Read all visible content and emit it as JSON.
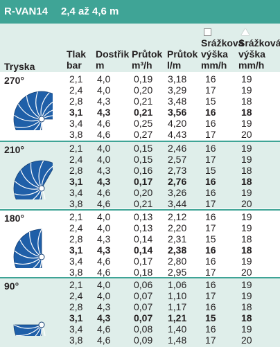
{
  "title_bar": {
    "model": "R-VAN14",
    "range": "2,4 až 4,6 m"
  },
  "colors": {
    "accent": "#3fa496",
    "band": "#dfeeea"
  },
  "columns": {
    "tryska": "Tryska",
    "tlak": [
      "Tlak",
      "bar"
    ],
    "dostrik": [
      "Dostřik",
      "m"
    ],
    "prutok_m3": [
      "Průtok",
      "m³/h"
    ],
    "prutok_l": [
      "Průtok",
      "l/m"
    ],
    "srazkova_sq": [
      "Srážková",
      "výška",
      "mm/h"
    ],
    "srazkova_tri": [
      "Srážková",
      "výška",
      "mm/h"
    ]
  },
  "groups": [
    {
      "arc": "270°",
      "icon": "nozzle-270-icon",
      "bold_row": 3,
      "rows": [
        [
          "2,1",
          "4,0",
          "0,19",
          "3,18",
          "16",
          "19"
        ],
        [
          "2,4",
          "4,0",
          "0,20",
          "3,29",
          "17",
          "19"
        ],
        [
          "2,8",
          "4,3",
          "0,21",
          "3,48",
          "15",
          "18"
        ],
        [
          "3,1",
          "4,3",
          "0,21",
          "3,56",
          "16",
          "18"
        ],
        [
          "3,4",
          "4,6",
          "0,25",
          "4,20",
          "16",
          "19"
        ],
        [
          "3,8",
          "4,6",
          "0,27",
          "4,43",
          "17",
          "20"
        ]
      ]
    },
    {
      "arc": "210°",
      "icon": "nozzle-210-icon",
      "bold_row": 3,
      "rows": [
        [
          "2,1",
          "4,0",
          "0,15",
          "2,46",
          "16",
          "19"
        ],
        [
          "2,4",
          "4,0",
          "0,15",
          "2,57",
          "17",
          "19"
        ],
        [
          "2,8",
          "4,3",
          "0,16",
          "2,73",
          "15",
          "18"
        ],
        [
          "3,1",
          "4,3",
          "0,17",
          "2,76",
          "16",
          "18"
        ],
        [
          "3,4",
          "4,6",
          "0,20",
          "3,26",
          "16",
          "19"
        ],
        [
          "3,8",
          "4,6",
          "0,21",
          "3,44",
          "17",
          "20"
        ]
      ]
    },
    {
      "arc": "180°",
      "icon": "nozzle-180-icon",
      "bold_row": 3,
      "rows": [
        [
          "2,1",
          "4,0",
          "0,13",
          "2,12",
          "16",
          "19"
        ],
        [
          "2,4",
          "4,0",
          "0,13",
          "2,20",
          "17",
          "19"
        ],
        [
          "2,8",
          "4,3",
          "0,14",
          "2,31",
          "15",
          "18"
        ],
        [
          "3,1",
          "4,3",
          "0,14",
          "2,38",
          "16",
          "18"
        ],
        [
          "3,4",
          "4,6",
          "0,17",
          "2,80",
          "16",
          "19"
        ],
        [
          "3,8",
          "4,6",
          "0,18",
          "2,95",
          "17",
          "20"
        ]
      ]
    },
    {
      "arc": "90°",
      "icon": "nozzle-90-icon",
      "bold_row": 3,
      "rows": [
        [
          "2,1",
          "4,0",
          "0,06",
          "1,06",
          "16",
          "19"
        ],
        [
          "2,4",
          "4,0",
          "0,07",
          "1,10",
          "17",
          "19"
        ],
        [
          "2,8",
          "4,3",
          "0,07",
          "1,17",
          "16",
          "18"
        ],
        [
          "3,1",
          "4,3",
          "0,07",
          "1,21",
          "15",
          "18"
        ],
        [
          "3,4",
          "4,6",
          "0,08",
          "1,40",
          "16",
          "19"
        ],
        [
          "3,8",
          "4,6",
          "0,09",
          "1,48",
          "17",
          "20"
        ]
      ]
    }
  ]
}
